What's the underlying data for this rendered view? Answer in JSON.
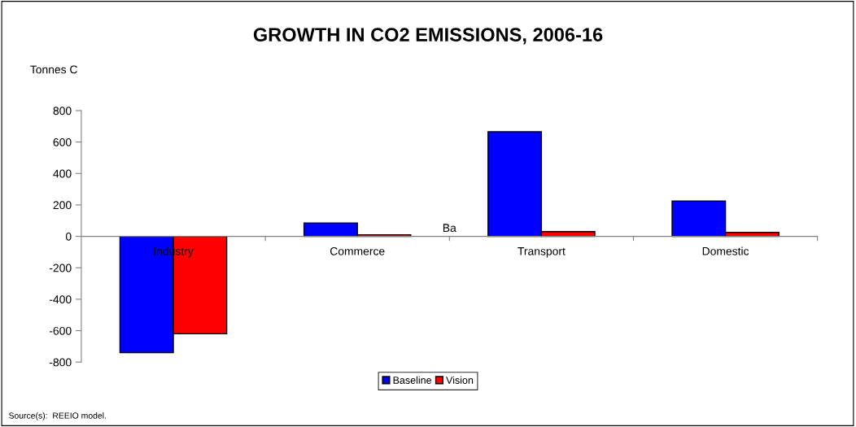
{
  "chart_data": {
    "type": "bar",
    "title": "GROWTH IN CO2 EMISSIONS, 2006-16",
    "ylabel": "Tonnes C",
    "categories": [
      "Industry",
      "Commerce",
      "Transport",
      "Domestic"
    ],
    "series": [
      {
        "name": "Baseline",
        "color": "#0000ff",
        "values": [
          -740,
          85,
          665,
          225
        ]
      },
      {
        "name": "Vision",
        "color": "#ff0000",
        "values": [
          -620,
          10,
          30,
          25
        ]
      }
    ],
    "ylim": [
      -800,
      800
    ],
    "yticks": [
      -800,
      -600,
      -400,
      -200,
      0,
      200,
      400,
      600,
      800
    ],
    "grid": false,
    "legend": "bottom",
    "annotations": [
      "Ba",
      "Source(s):  REEIO model."
    ]
  }
}
